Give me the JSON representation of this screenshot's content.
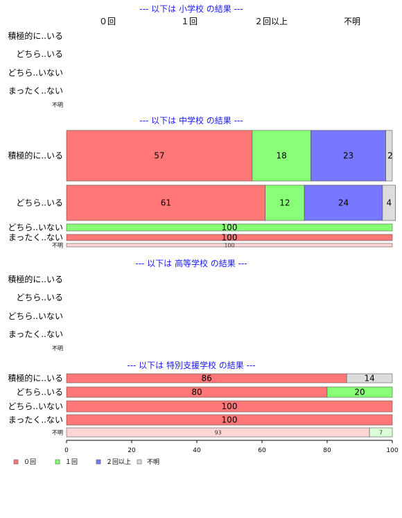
{
  "chart_data": {
    "type": "bar",
    "orientation": "horizontal",
    "stacked": true,
    "percent": true,
    "xlim": [
      0,
      100
    ],
    "xticks": [
      0,
      20,
      40,
      60,
      80,
      100
    ],
    "series": [
      {
        "name": "０回",
        "color": "#ff7777"
      },
      {
        "name": "１回",
        "color": "#88ff77"
      },
      {
        "name": "２回以上",
        "color": "#7777ff"
      },
      {
        "name": "不明",
        "color": "#dddddd"
      }
    ],
    "column_headers": [
      "０回",
      "１回",
      "２回以上",
      "不明"
    ],
    "categories": [
      "積極的に..いる",
      "どちら..いる",
      "どちら..いない",
      "まったく..ない",
      "不明"
    ],
    "panels": [
      {
        "title": "--- 以下は 小学校 の結果 ---",
        "show_column_headers": true,
        "rows": []
      },
      {
        "title": "--- 以下は 中学校 の結果 ---",
        "show_column_headers": false,
        "rows": [
          {
            "label": "積極的に..いる",
            "values": [
              57,
              18,
              23,
              2
            ],
            "labels": [
              "57",
              "18",
              "23",
              "2"
            ]
          },
          {
            "label": "どちら..いる",
            "values": [
              61,
              12,
              24,
              4
            ],
            "labels": [
              "61",
              "12",
              "24",
              "4"
            ]
          },
          {
            "label": "どちら..いない",
            "values": [
              0,
              100,
              0,
              0
            ],
            "labels": [
              "",
              "100",
              "",
              ""
            ]
          },
          {
            "label": "まったく..ない",
            "values": [
              100,
              0,
              0,
              0
            ],
            "labels": [
              "100",
              "",
              "",
              ""
            ]
          },
          {
            "label": "不明",
            "values": [
              100,
              0,
              0,
              0
            ],
            "labels": [
              "100",
              "",
              "",
              ""
            ],
            "light": true
          }
        ]
      },
      {
        "title": "--- 以下は 高等学校 の結果 ---",
        "show_column_headers": false,
        "rows": []
      },
      {
        "title": "--- 以下は 特別支援学校 の結果 ---",
        "show_column_headers": false,
        "rows": [
          {
            "label": "積極的に..いる",
            "values": [
              86,
              0,
              0,
              14
            ],
            "labels": [
              "86",
              "",
              "",
              "14"
            ]
          },
          {
            "label": "どちら..いる",
            "values": [
              80,
              20,
              0,
              0
            ],
            "labels": [
              "80",
              "20",
              "",
              ""
            ]
          },
          {
            "label": "どちら..いない",
            "values": [
              100,
              0,
              0,
              0
            ],
            "labels": [
              "100",
              "",
              "",
              ""
            ]
          },
          {
            "label": "まったく..ない",
            "values": [
              100,
              0,
              0,
              0
            ],
            "labels": [
              "100",
              "",
              "",
              ""
            ]
          },
          {
            "label": "不明",
            "values": [
              93,
              7,
              0,
              0
            ],
            "labels": [
              "93",
              "7",
              "",
              ""
            ],
            "light": true
          }
        ]
      }
    ],
    "legend": {
      "position": "bottom-left",
      "items": [
        "０回",
        "１回",
        "２回以上",
        "不明"
      ]
    }
  }
}
